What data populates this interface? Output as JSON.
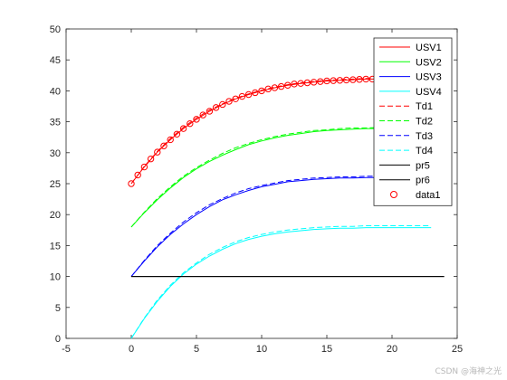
{
  "chart_data": {
    "type": "line",
    "xlim": [
      -5,
      25
    ],
    "ylim": [
      0,
      50
    ],
    "x_ticks": [
      -5,
      0,
      5,
      10,
      15,
      20,
      25
    ],
    "y_ticks": [
      0,
      5,
      10,
      15,
      20,
      25,
      30,
      35,
      40,
      45,
      50
    ],
    "grid": false,
    "legend_position": "top-right",
    "series": [
      {
        "name": "USV1",
        "color": "#ff0000",
        "style": "solid",
        "x": [
          0,
          1,
          2,
          3,
          4,
          5,
          6,
          7,
          8,
          9,
          10,
          11,
          12,
          13,
          14,
          15,
          16,
          17,
          18,
          19,
          20,
          21,
          22,
          23
        ],
        "y": [
          25,
          27.7,
          30.1,
          32.1,
          33.9,
          35.4,
          36.7,
          37.8,
          38.7,
          39.4,
          40.0,
          40.5,
          40.9,
          41.2,
          41.4,
          41.6,
          41.7,
          41.8,
          41.9,
          41.9,
          42.0,
          42.0,
          42.0,
          42.0
        ]
      },
      {
        "name": "USV2",
        "color": "#00ff00",
        "style": "solid",
        "x": [
          0,
          1,
          2,
          3,
          4,
          5,
          6,
          7,
          8,
          9,
          10,
          11,
          12,
          13,
          14,
          15,
          16,
          17,
          18,
          19,
          20,
          21,
          22,
          23
        ],
        "y": [
          18,
          20.3,
          22.4,
          24.3,
          26.0,
          27.4,
          28.6,
          29.6,
          30.5,
          31.3,
          31.9,
          32.4,
          32.8,
          33.1,
          33.4,
          33.6,
          33.7,
          33.8,
          33.9,
          33.9,
          34.0,
          34.0,
          34.0,
          34.0
        ]
      },
      {
        "name": "USV3",
        "color": "#0000ff",
        "style": "solid",
        "x": [
          0,
          1,
          2,
          3,
          4,
          5,
          6,
          7,
          8,
          9,
          10,
          11,
          12,
          13,
          14,
          15,
          16,
          17,
          18,
          19,
          20,
          21,
          22,
          23
        ],
        "y": [
          10,
          12.5,
          14.8,
          16.8,
          18.5,
          20.0,
          21.3,
          22.4,
          23.2,
          23.9,
          24.5,
          24.9,
          25.3,
          25.5,
          25.7,
          25.8,
          25.9,
          25.9,
          26.0,
          26.0,
          26.0,
          26.0,
          26.0,
          26.0
        ]
      },
      {
        "name": "USV4",
        "color": "#00ffff",
        "style": "solid",
        "x": [
          0,
          1,
          2,
          3,
          4,
          5,
          6,
          7,
          8,
          9,
          10,
          11,
          12,
          13,
          14,
          15,
          16,
          17,
          18,
          19,
          20,
          21,
          22,
          23
        ],
        "y": [
          0,
          3.2,
          6.0,
          8.4,
          10.4,
          12.0,
          13.3,
          14.4,
          15.3,
          16.0,
          16.5,
          16.9,
          17.2,
          17.4,
          17.6,
          17.7,
          17.8,
          17.8,
          17.9,
          17.9,
          17.9,
          17.9,
          17.9,
          17.9
        ]
      },
      {
        "name": "Td1",
        "color": "#ff0000",
        "style": "dashed",
        "x": [
          0,
          1,
          2,
          3,
          4,
          5,
          6,
          7,
          8,
          9,
          10,
          11,
          12,
          13,
          14,
          15,
          16,
          17,
          18,
          19,
          20,
          21,
          22,
          23
        ],
        "y": [
          25,
          27.8,
          30.2,
          32.3,
          34.1,
          35.6,
          36.9,
          37.9,
          38.8,
          39.5,
          40.1,
          40.6,
          41.0,
          41.3,
          41.5,
          41.7,
          41.8,
          41.9,
          42.0,
          42.0,
          42.1,
          42.1,
          42.1,
          42.1
        ]
      },
      {
        "name": "Td2",
        "color": "#00ff00",
        "style": "dashed",
        "x": [
          0,
          1,
          2,
          3,
          4,
          5,
          6,
          7,
          8,
          9,
          10,
          11,
          12,
          13,
          14,
          15,
          16,
          17,
          18,
          19,
          20,
          21,
          22,
          23
        ],
        "y": [
          18,
          20.4,
          22.6,
          24.5,
          26.2,
          27.6,
          28.8,
          29.9,
          30.8,
          31.5,
          32.1,
          32.6,
          33.0,
          33.3,
          33.6,
          33.7,
          33.9,
          34.0,
          34.0,
          34.1,
          34.1,
          34.1,
          34.1,
          34.1
        ]
      },
      {
        "name": "Td3",
        "color": "#0000ff",
        "style": "dashed",
        "x": [
          0,
          1,
          2,
          3,
          4,
          5,
          6,
          7,
          8,
          9,
          10,
          11,
          12,
          13,
          14,
          15,
          16,
          17,
          18,
          19,
          20,
          21,
          22,
          23
        ],
        "y": [
          10,
          12.6,
          15.0,
          17.0,
          18.8,
          20.3,
          21.6,
          22.6,
          23.5,
          24.2,
          24.7,
          25.1,
          25.5,
          25.7,
          25.9,
          26.0,
          26.1,
          26.1,
          26.2,
          26.2,
          26.2,
          26.2,
          26.2,
          26.2
        ]
      },
      {
        "name": "Td4",
        "color": "#00ffff",
        "style": "dashed",
        "x": [
          0,
          1,
          2,
          3,
          4,
          5,
          6,
          7,
          8,
          9,
          10,
          11,
          12,
          13,
          14,
          15,
          16,
          17,
          18,
          19,
          20,
          21,
          22,
          23
        ],
        "y": [
          0,
          3.3,
          6.2,
          8.6,
          10.6,
          12.2,
          13.6,
          14.7,
          15.6,
          16.3,
          16.8,
          17.2,
          17.5,
          17.7,
          17.9,
          18.0,
          18.1,
          18.1,
          18.2,
          18.2,
          18.2,
          18.2,
          18.2,
          18.2
        ]
      },
      {
        "name": "pr5",
        "color": "#000000",
        "style": "solid",
        "x": [
          0,
          24
        ],
        "y": [
          10,
          10
        ]
      },
      {
        "name": "pr6",
        "color": "#000000",
        "style": "solid",
        "x": [
          0,
          24
        ],
        "y": [
          10,
          10
        ]
      },
      {
        "name": "data1",
        "color": "#ff0000",
        "style": "markers",
        "x": [
          0,
          0.5,
          1,
          1.5,
          2,
          2.5,
          3,
          3.5,
          4,
          4.5,
          5,
          5.5,
          6,
          6.5,
          7,
          7.5,
          8,
          8.5,
          9,
          9.5,
          10,
          10.5,
          11,
          11.5,
          12,
          12.5,
          13,
          13.5,
          14,
          14.5,
          15,
          15.5,
          16,
          16.5,
          17,
          17.5,
          18,
          18.5,
          19,
          19.5,
          20,
          20.5,
          21,
          21.5,
          22,
          22.5,
          23
        ],
        "y": [
          25,
          26.4,
          27.7,
          29.0,
          30.1,
          31.1,
          32.1,
          33.0,
          33.9,
          34.7,
          35.4,
          36.1,
          36.7,
          37.3,
          37.8,
          38.3,
          38.7,
          39.1,
          39.4,
          39.7,
          40.0,
          40.3,
          40.5,
          40.7,
          40.9,
          41.1,
          41.2,
          41.3,
          41.4,
          41.5,
          41.6,
          41.65,
          41.7,
          41.75,
          41.8,
          41.85,
          41.9,
          41.9,
          41.9,
          41.95,
          42.0,
          42.0,
          42.0,
          42.0,
          42.0,
          42.0,
          42.0
        ]
      }
    ]
  },
  "watermark": "CSDN @海神之光"
}
